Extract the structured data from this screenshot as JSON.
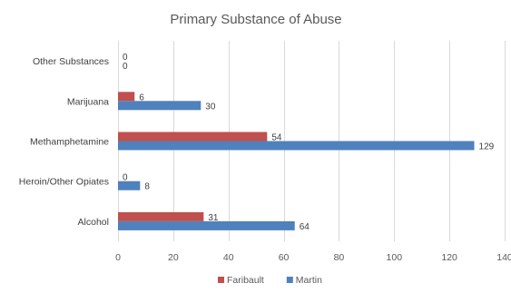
{
  "chart_data": {
    "type": "bar",
    "orientation": "horizontal",
    "title": "Primary Substance of Abuse",
    "categories": [
      "Other Substances",
      "Marijuana",
      "Methamphetamine",
      "Heroin/Other Opiates",
      "Alcohol"
    ],
    "series": [
      {
        "name": "Faribault",
        "color": "#c0504d",
        "values": [
          0,
          6,
          54,
          0,
          31
        ]
      },
      {
        "name": "Martin",
        "color": "#4f81bd",
        "values": [
          0,
          30,
          129,
          8,
          64
        ]
      }
    ],
    "xlim": [
      0,
      140
    ],
    "xticks": [
      0,
      20,
      40,
      60,
      80,
      100,
      120,
      140
    ],
    "grid": true,
    "legend_position": "bottom"
  }
}
